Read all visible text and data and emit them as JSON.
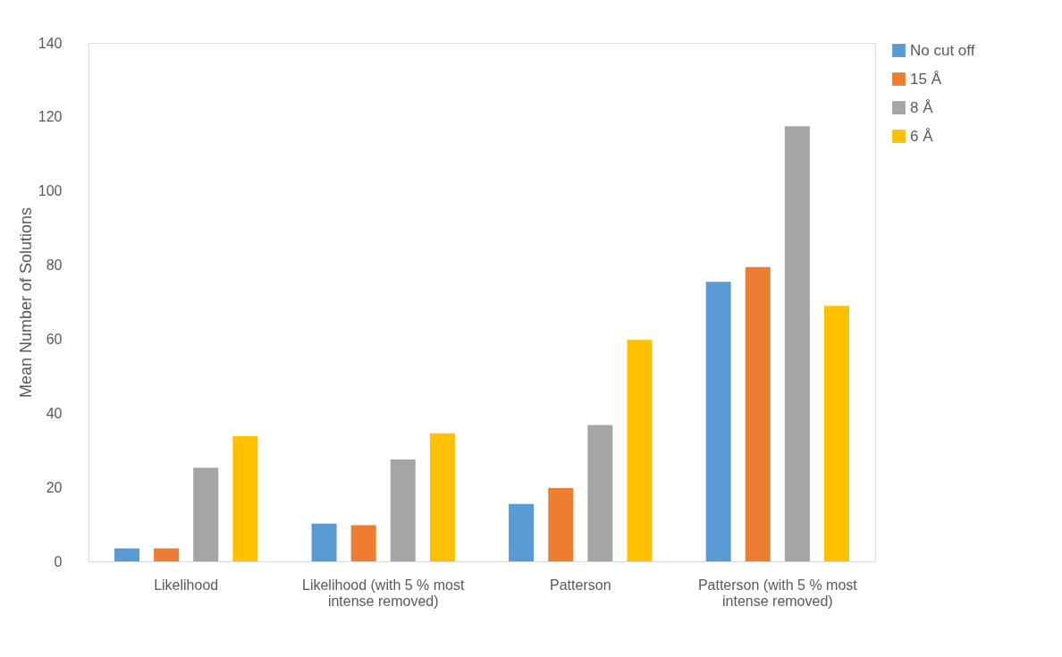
{
  "chart_data": {
    "type": "bar",
    "ylabel": "Mean Number of Solutions",
    "categories": [
      "Likelihood",
      "Likelihood (with 5 % most intense removed)",
      "Patterson",
      "Patterson (with 5 % most intense removed)"
    ],
    "series": [
      {
        "name": "No cut off",
        "color": "#5b9bd5",
        "values": [
          3.5,
          10.2,
          15.5,
          75.5
        ]
      },
      {
        "name": "15 Å",
        "color": "#ed7d31",
        "values": [
          3.5,
          9.8,
          19.8,
          79.5
        ]
      },
      {
        "name": "8 Å",
        "color": "#a5a5a5",
        "values": [
          25.3,
          27.5,
          36.8,
          117.5
        ]
      },
      {
        "name": "6 Å",
        "color": "#ffc000",
        "values": [
          33.8,
          34.6,
          59.8,
          69
        ]
      }
    ],
    "ylim": [
      0,
      140
    ],
    "yticks": [
      0,
      20,
      40,
      60,
      80,
      100,
      120,
      140
    ],
    "grid": false,
    "legend": "right"
  }
}
